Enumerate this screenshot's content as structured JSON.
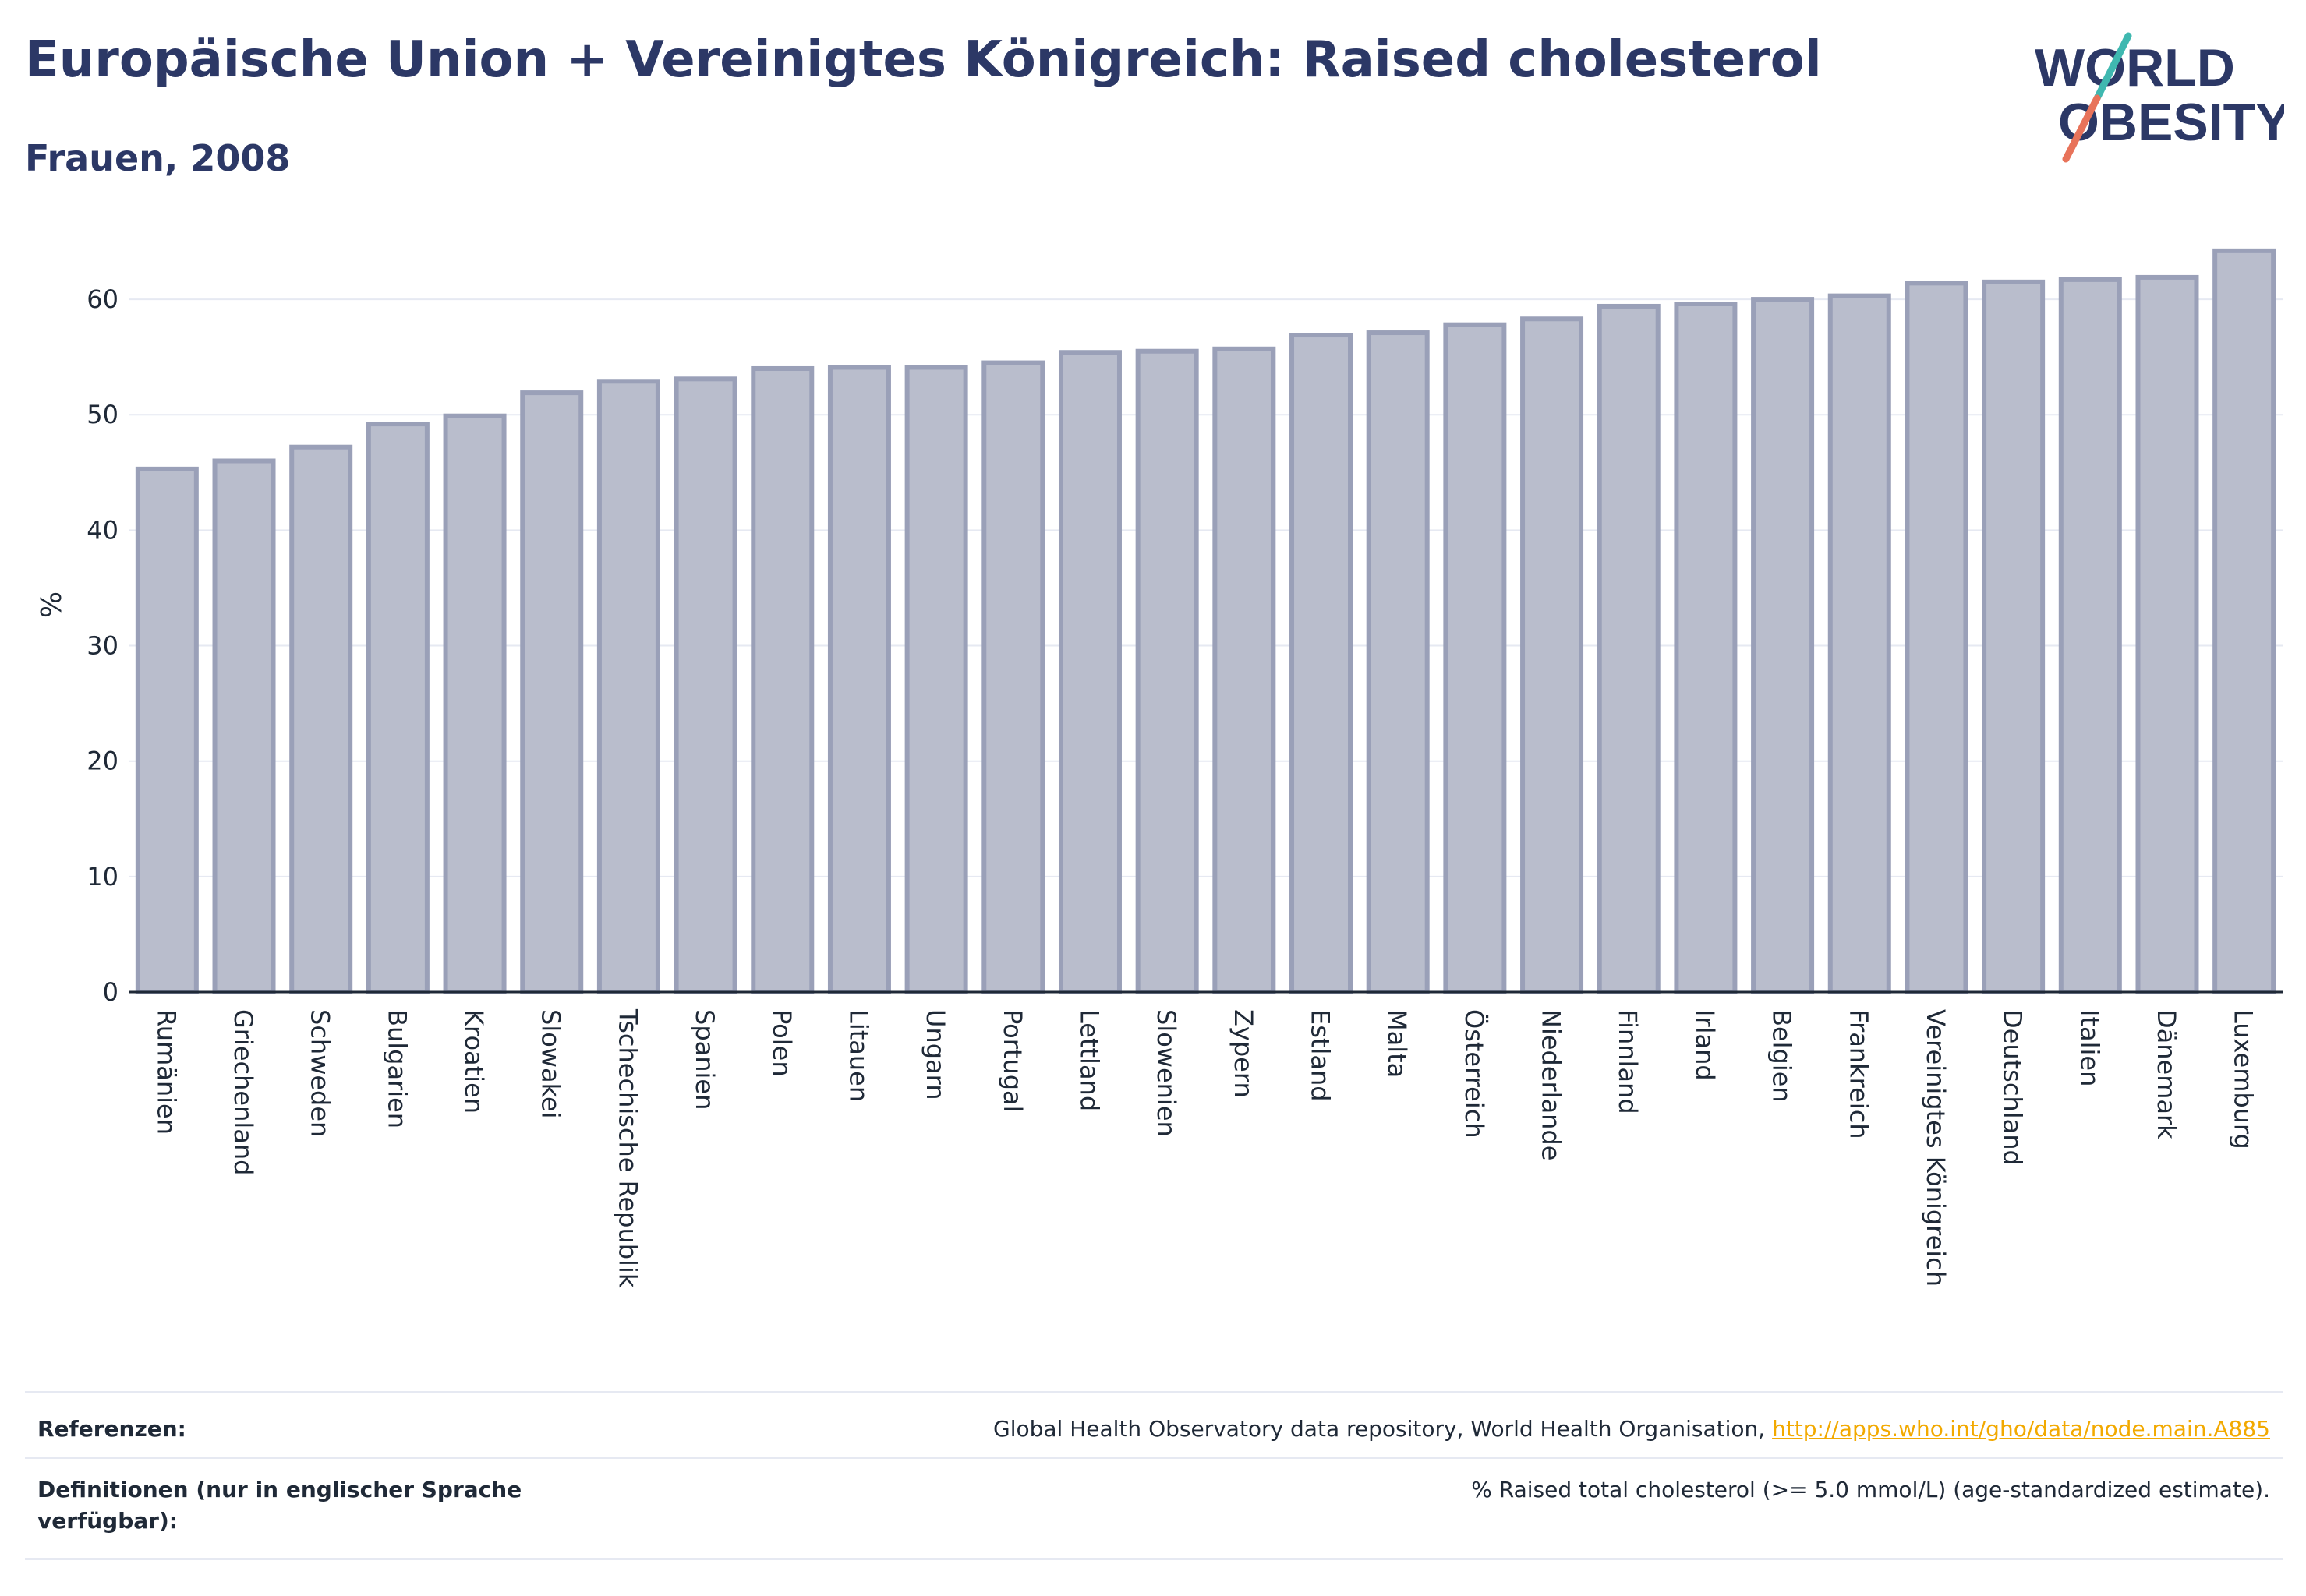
{
  "header": {
    "title": "Europäische Union + Vereinigtes Königreich: Raised cholesterol",
    "subtitle": "Frauen, 2008"
  },
  "logo": {
    "line1": "WORLD",
    "line2": "OBESITY",
    "colors": {
      "text": "#2c3866",
      "slash_top": "#3fb8b0",
      "slash_bottom": "#e8735a"
    }
  },
  "chart_data": {
    "type": "bar",
    "title": "Europäische Union + Vereinigtes Königreich: Raised cholesterol",
    "subtitle": "Frauen, 2008",
    "ylabel": "%",
    "xlabel": "",
    "ylim": [
      0,
      65
    ],
    "yticks": [
      0,
      10,
      20,
      30,
      40,
      50,
      60
    ],
    "grid": true,
    "bar_color": "#b9bdcc",
    "bar_border": "#9aa0b8",
    "categories": [
      "Rumänien",
      "Griechenland",
      "Schweden",
      "Bulgarien",
      "Kroatien",
      "Slowakei",
      "Tschechische Republik",
      "Spanien",
      "Polen",
      "Litauen",
      "Ungarn",
      "Portugal",
      "Lettland",
      "Slowenien",
      "Zypern",
      "Estland",
      "Malta",
      "Österreich",
      "Niederlande",
      "Finnland",
      "Irland",
      "Belgien",
      "Frankreich",
      "Vereinigtes Königreich",
      "Deutschland",
      "Italien",
      "Dänemark",
      "Luxemburg"
    ],
    "values": [
      45.3,
      46.0,
      47.2,
      49.2,
      49.9,
      51.9,
      52.9,
      53.1,
      54.0,
      54.1,
      54.1,
      54.5,
      55.4,
      55.5,
      55.7,
      56.9,
      57.1,
      57.8,
      58.3,
      59.4,
      59.6,
      60.0,
      60.3,
      61.4,
      61.5,
      61.7,
      61.9,
      64.2
    ]
  },
  "footer": {
    "references_label": "Referenzen:",
    "references_text": "Global Health Observatory data repository, World Health Organisation, ",
    "references_link": "http://apps.who.int/gho/data/node.main.A885",
    "definitions_label": "Definitionen (nur in englischer Sprache verfügbar):",
    "definitions_text": "% Raised total cholesterol (>= 5.0 mmol/L) (age-standardized estimate)."
  }
}
